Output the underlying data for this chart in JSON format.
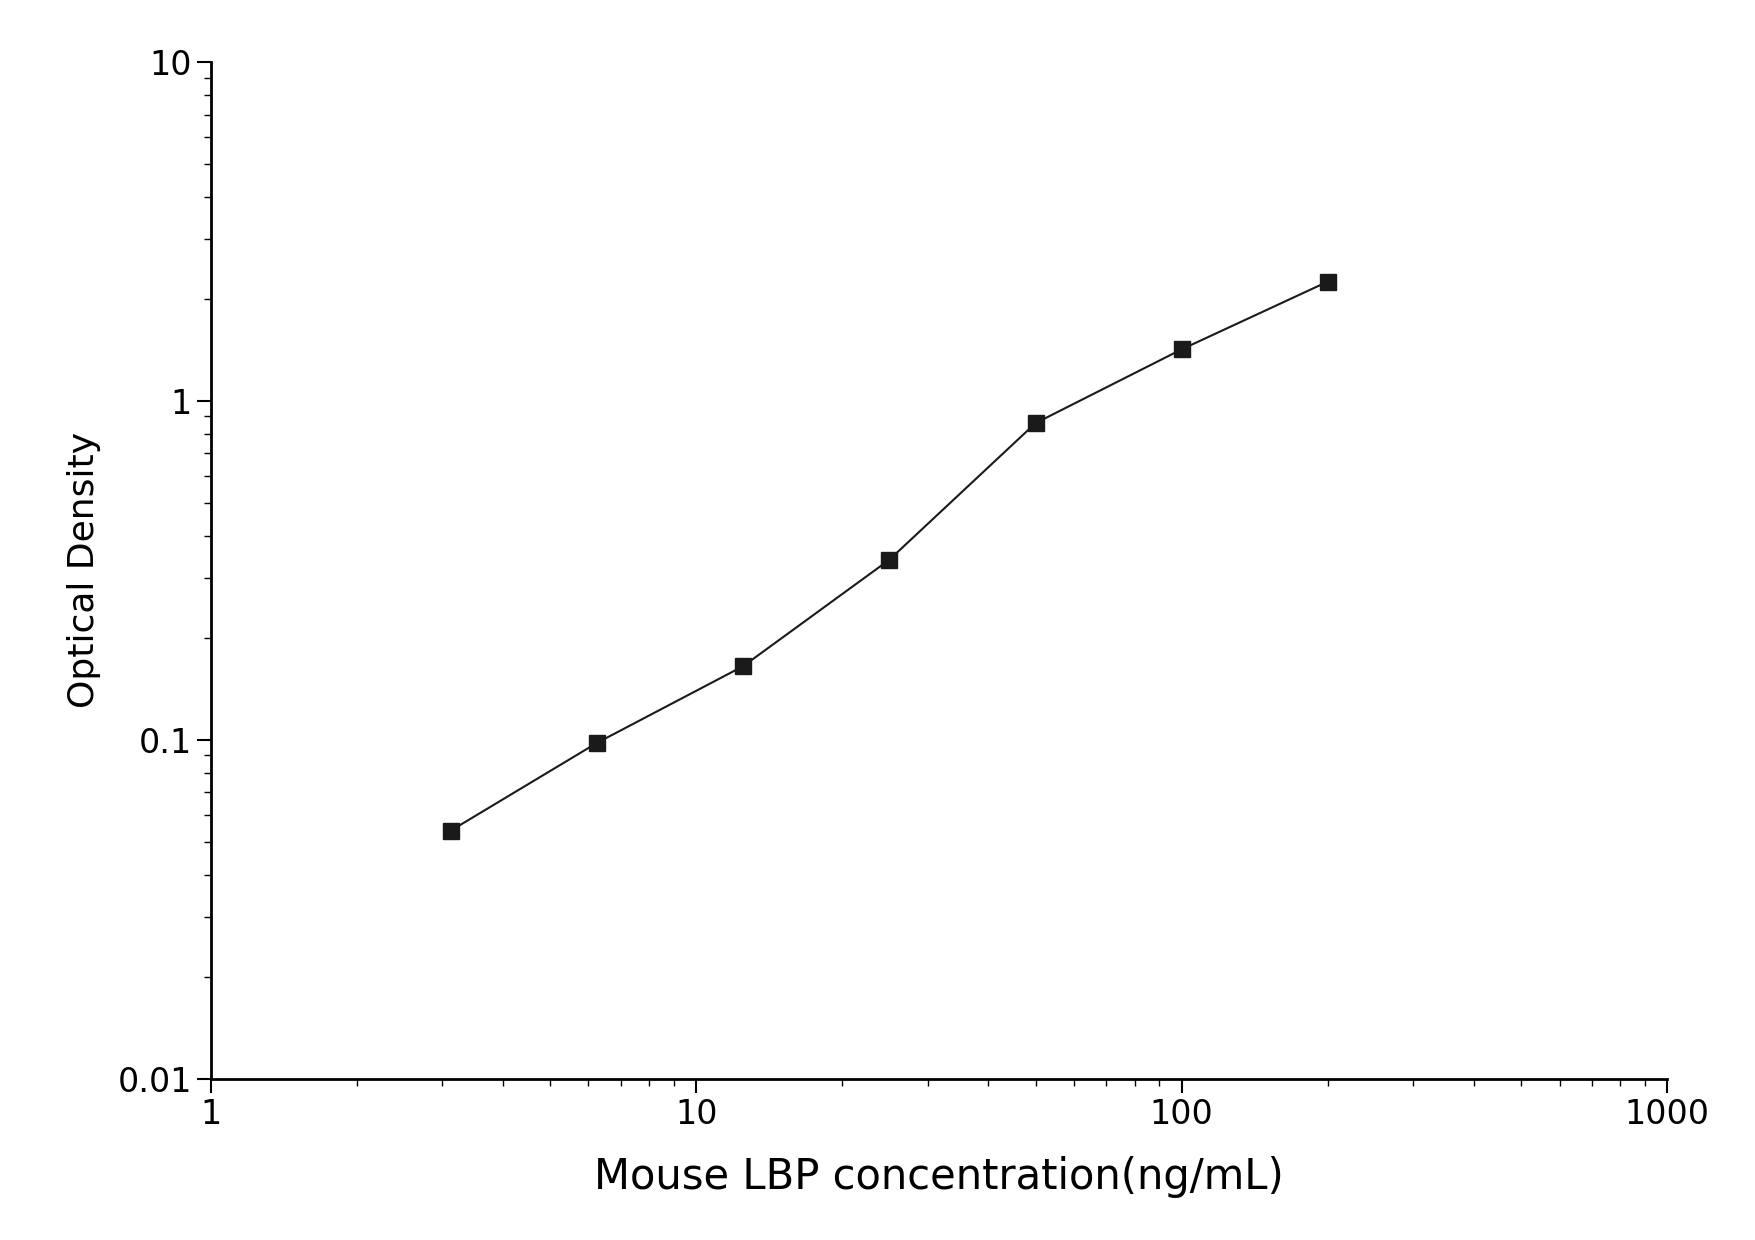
{
  "x_data": [
    3.125,
    6.25,
    12.5,
    25,
    50,
    100,
    200
  ],
  "y_data": [
    0.054,
    0.098,
    0.165,
    0.34,
    0.86,
    1.42,
    2.25
  ],
  "xlim": [
    1,
    1000
  ],
  "ylim": [
    0.01,
    10
  ],
  "xlabel": "Mouse LBP concentration(ng/mL)",
  "ylabel": "Optical Density",
  "xlabel_fontsize": 30,
  "ylabel_fontsize": 26,
  "tick_fontsize": 24,
  "marker": "s",
  "marker_size": 11,
  "line_color": "#1a1a1a",
  "marker_color": "#1a1a1a",
  "background_color": "#ffffff",
  "line_width": 1.5,
  "ytick_labels": [
    "0.01",
    "0.1",
    "1",
    "10"
  ],
  "ytick_values": [
    0.01,
    0.1,
    1,
    10
  ],
  "xtick_labels": [
    "1",
    "10",
    "100",
    "1000"
  ],
  "xtick_values": [
    1,
    10,
    100,
    1000
  ]
}
